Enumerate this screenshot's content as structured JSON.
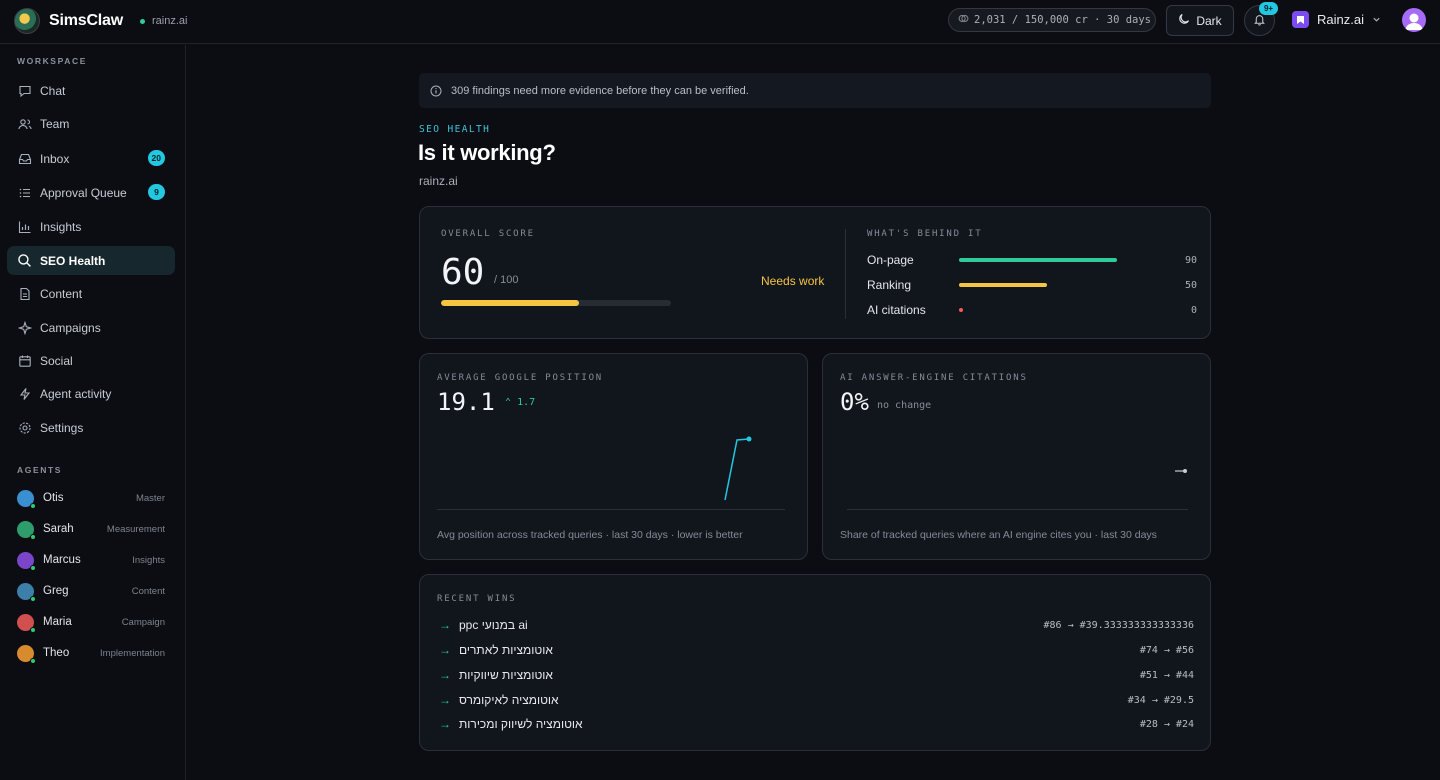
{
  "app": {
    "name": "SimsClaw",
    "domain": "rainz.ai"
  },
  "header": {
    "credits": "2,031 / 150,000 cr · 30 days",
    "theme_label": "Dark",
    "notif_badge": "9+",
    "workspace_name": "Rainz.ai"
  },
  "sidebar": {
    "workspace_label": "WORKSPACE",
    "items": [
      {
        "label": "Chat",
        "icon": "chat-icon"
      },
      {
        "label": "Team",
        "icon": "team-icon"
      },
      {
        "label": "Inbox",
        "icon": "inbox-icon",
        "badge": "20"
      },
      {
        "label": "Approval Queue",
        "icon": "list-icon",
        "badge": "9"
      },
      {
        "label": "Insights",
        "icon": "bar-chart-icon"
      },
      {
        "label": "SEO Health",
        "icon": "search-icon",
        "active": true
      },
      {
        "label": "Content",
        "icon": "document-icon"
      },
      {
        "label": "Campaigns",
        "icon": "sparkle-icon"
      },
      {
        "label": "Social",
        "icon": "calendar-icon"
      },
      {
        "label": "Agent activity",
        "icon": "bolt-icon"
      },
      {
        "label": "Settings",
        "icon": "gear-icon"
      }
    ],
    "agents_label": "AGENTS",
    "agents": [
      {
        "name": "Otis",
        "role": "Master",
        "color": "#3a8fd1"
      },
      {
        "name": "Sarah",
        "role": "Measurement",
        "color": "#2f9c6c"
      },
      {
        "name": "Marcus",
        "role": "Insights",
        "color": "#7a45c9"
      },
      {
        "name": "Greg",
        "role": "Content",
        "color": "#3c7fa8"
      },
      {
        "name": "Maria",
        "role": "Campaign",
        "color": "#d04f4f"
      },
      {
        "name": "Theo",
        "role": "Implementation",
        "color": "#d88a2e"
      }
    ]
  },
  "banner": {
    "text": "309 findings need more evidence before they can be verified."
  },
  "page": {
    "eyebrow": "SEO HEALTH",
    "title": "Is it working?",
    "subtitle": "rainz.ai"
  },
  "score": {
    "label": "OVERALL SCORE",
    "value": "60",
    "max": "/ 100",
    "fraction": 0.6,
    "status": "Needs work",
    "behind_label": "WHAT'S BEHIND IT",
    "factors": [
      {
        "name": "On-page",
        "value": 90,
        "display": "90",
        "color": "#2ecc9a"
      },
      {
        "name": "Ranking",
        "value": 50,
        "display": "50",
        "color": "#f5c542"
      },
      {
        "name": "AI citations",
        "value": 0,
        "display": "0",
        "color": "#f05a5a"
      }
    ]
  },
  "google_position": {
    "label": "AVERAGE GOOGLE POSITION",
    "value": "19.1",
    "delta": "1.7",
    "caption": "Avg position across tracked queries · last 30 days · lower is better"
  },
  "ai_citations": {
    "label": "AI ANSWER-ENGINE CITATIONS",
    "value": "0%",
    "delta": "no change",
    "caption": "Share of tracked queries where an AI engine cites you · last 30 days"
  },
  "recent_wins": {
    "label": "RECENT WINS",
    "items": [
      {
        "term": "ppc במנועי ai",
        "change": "#86 → #39.333333333333336"
      },
      {
        "term": "אוטומציות לאתרים",
        "change": "#74 → #56"
      },
      {
        "term": "אוטומציות שיווקיות",
        "change": "#51 → #44"
      },
      {
        "term": "אוטומציה לאיקומרס",
        "change": "#34 → #29.5"
      },
      {
        "term": "אוטומציה לשיווק ומכירות",
        "change": "#28 → #24"
      }
    ]
  }
}
